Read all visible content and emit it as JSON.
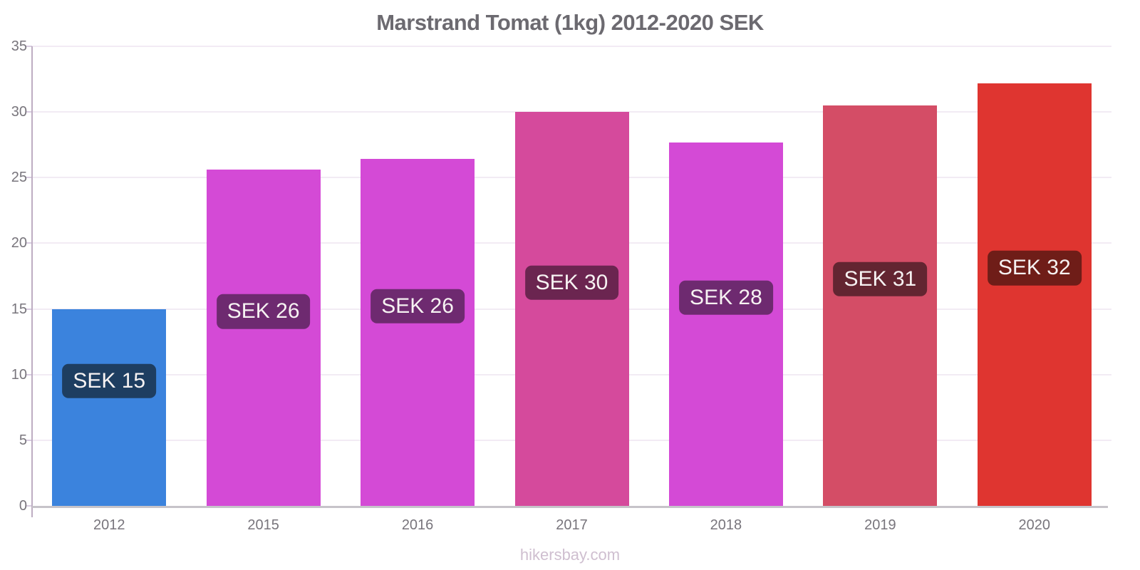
{
  "chart_data": {
    "type": "bar",
    "title": "Marstrand Tomat (1kg) 2012-2020 SEK",
    "categories": [
      "2012",
      "2015",
      "2016",
      "2017",
      "2018",
      "2019",
      "2020"
    ],
    "values": [
      15,
      25.6,
      26.4,
      30,
      27.7,
      30.5,
      32.2
    ],
    "bar_labels": [
      "SEK 15",
      "SEK 26",
      "SEK 26",
      "SEK 30",
      "SEK 28",
      "SEK 31",
      "SEK 32"
    ],
    "bar_colors": [
      "#3b83dd",
      "#d44ad6",
      "#d44ad6",
      "#d54a9c",
      "#d44ad6",
      "#d44d66",
      "#df3530"
    ],
    "bar_label_bg_colors": [
      "#1e3e61",
      "#6e2a70",
      "#6e2a70",
      "#6b2550",
      "#6e2a70",
      "#632531",
      "#6f1d18"
    ],
    "xlabel": "",
    "ylabel": "",
    "ylim": [
      0,
      35
    ],
    "yticks": [
      0,
      5,
      10,
      15,
      20,
      25,
      30,
      35
    ],
    "grid": true,
    "legend": false
  },
  "footer": {
    "text": "hikersbay.com"
  },
  "colors": {
    "title_text": "#6c6a70",
    "axis_line": "#bdadc2",
    "gridline": "#f2ebf4",
    "tick_mark": "#d8cce0",
    "baseline": "#c6c3c9",
    "axis_label_text": "#78757c",
    "bar_label_text": "#f6f2f2",
    "footer_text": "#cfbfd0",
    "background": "#ffffff"
  }
}
